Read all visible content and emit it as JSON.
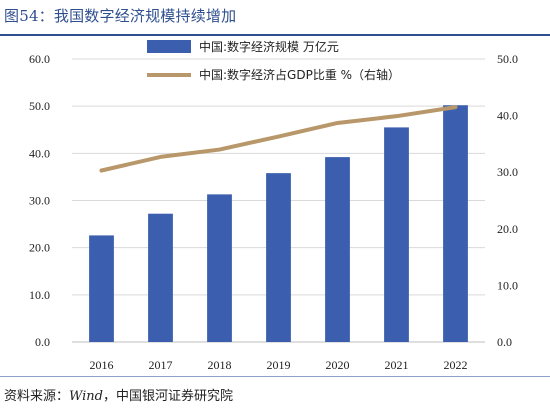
{
  "title": "图54：我国数字经济规模持续增加",
  "source_label": "资料来源：",
  "source_wind": "Wind",
  "source_rest": "，中国银河证券研究院",
  "chart_data": {
    "type": "bar",
    "categories": [
      "2016",
      "2017",
      "2018",
      "2019",
      "2020",
      "2021",
      "2022"
    ],
    "series": [
      {
        "name": "中国:数字经济规模 万亿元",
        "type": "bar",
        "axis": "left",
        "color": "#3b5fae",
        "values": [
          22.6,
          27.2,
          31.3,
          35.8,
          39.2,
          45.5,
          50.2
        ]
      },
      {
        "name": "中国:数字经济占GDP比重 %（右轴）",
        "type": "line",
        "axis": "right",
        "color": "#b8976a",
        "values": [
          30.3,
          32.7,
          34.0,
          36.3,
          38.7,
          39.9,
          41.5
        ]
      }
    ],
    "yleft": {
      "lim": [
        0,
        60
      ],
      "ticks": [
        "0.0",
        "10.0",
        "20.0",
        "30.0",
        "40.0",
        "50.0",
        "60.0"
      ]
    },
    "yright": {
      "lim": [
        0,
        50
      ],
      "ticks": [
        "0.0",
        "10.0",
        "20.0",
        "30.0",
        "40.0",
        "50.0"
      ]
    },
    "legend_position": "top-center"
  }
}
